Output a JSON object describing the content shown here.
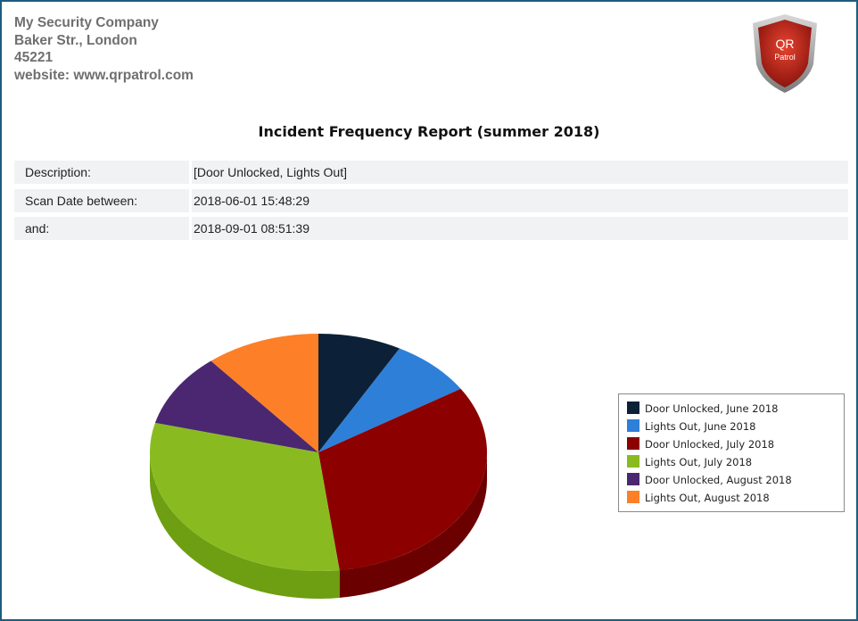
{
  "company": {
    "name": "My Security Company",
    "street": "Baker Str., London",
    "zip": "45221",
    "website": "website: www.qrpatrol.com"
  },
  "logo": {
    "line1": "QR",
    "line2": "Patrol",
    "colors": {
      "shield": "#c0271c",
      "rim": "#9a9a9a"
    }
  },
  "report": {
    "title": "Incident Frequency Report (summer 2018)",
    "fields": [
      {
        "label": "Description:",
        "value": "[Door Unlocked, Lights Out]"
      },
      {
        "label": "Scan Date  between:",
        "value": "2018-06-01 15:48:29"
      },
      {
        "label": "and:",
        "value": "2018-09-01 08:51:39"
      }
    ]
  },
  "chart_data": {
    "type": "pie",
    "style": "3d",
    "title": "",
    "legend_position": "right",
    "slices": [
      {
        "label": "Door Unlocked, June 2018",
        "value": 8,
        "color": "#0c2138",
        "side_color": "#061424"
      },
      {
        "label": "Lights Out, June 2018",
        "value": 8,
        "color": "#2e7fd8",
        "side_color": "#1f5fa8"
      },
      {
        "label": "Door Unlocked, July 2018",
        "value": 32,
        "color": "#8d0000",
        "side_color": "#6a0000"
      },
      {
        "label": "Lights Out, July 2018",
        "value": 31,
        "color": "#89bb21",
        "side_color": "#6e9e12"
      },
      {
        "label": "Door Unlocked, August 2018",
        "value": 10,
        "color": "#4a2770",
        "side_color": "#341a52"
      },
      {
        "label": "Lights Out, August 2018",
        "value": 11,
        "color": "#fd7f27",
        "side_color": "#d0641a"
      }
    ]
  }
}
